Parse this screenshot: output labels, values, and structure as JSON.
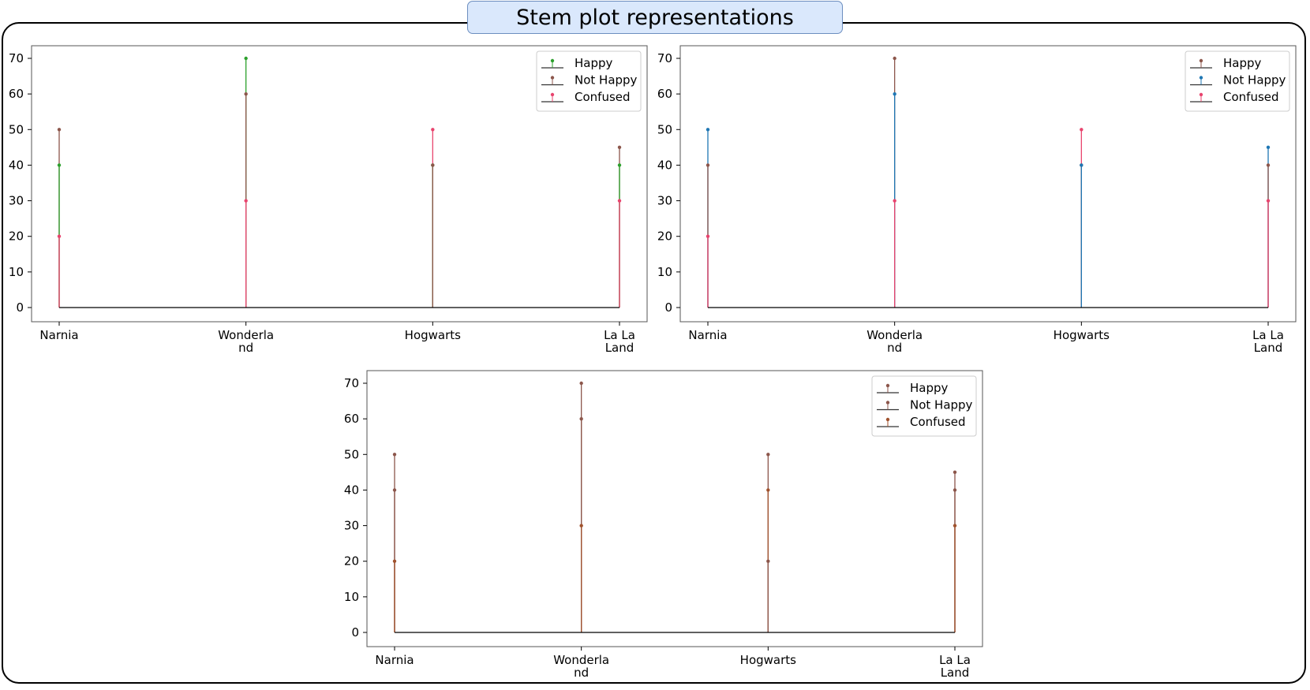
{
  "page_title": "Stem plot representations",
  "chart_data": [
    {
      "type": "stem",
      "categories": [
        "Narnia",
        "Wonderland",
        "Hogwarts",
        "La La Land"
      ],
      "category_labels": [
        [
          "Narnia"
        ],
        [
          "Wonderla",
          "nd"
        ],
        [
          "Hogwarts"
        ],
        [
          "La La",
          "Land"
        ]
      ],
      "series": [
        {
          "name": "Happy",
          "values": [
            40,
            70,
            40,
            40
          ],
          "color": "#2ca02c",
          "marker_color": "#2ca02c"
        },
        {
          "name": "Not Happy",
          "values": [
            50,
            60,
            40,
            45
          ],
          "color": "#8c564b",
          "marker_color": "#8c564b"
        },
        {
          "name": "Confused",
          "values": [
            20,
            30,
            50,
            30
          ],
          "color": "#e8446e",
          "marker_color": "#e8446e"
        }
      ],
      "ylim": [
        0,
        70
      ],
      "yticks": [
        0,
        10,
        20,
        30,
        40,
        50,
        60,
        70
      ],
      "legend_position": "top-right",
      "grid": false,
      "xlabel": "",
      "ylabel": "",
      "title": ""
    },
    {
      "type": "stem",
      "categories": [
        "Narnia",
        "Wonderland",
        "Hogwarts",
        "La La Land"
      ],
      "category_labels": [
        [
          "Narnia"
        ],
        [
          "Wonderla",
          "nd"
        ],
        [
          "Hogwarts"
        ],
        [
          "La La",
          "Land"
        ]
      ],
      "series": [
        {
          "name": "Happy",
          "values": [
            40,
            70,
            40,
            40
          ],
          "color": "#8c564b",
          "marker_color": "#8c564b"
        },
        {
          "name": "Not Happy",
          "values": [
            50,
            60,
            40,
            45
          ],
          "color": "#1f77b4",
          "marker_color": "#1f77b4"
        },
        {
          "name": "Confused",
          "values": [
            20,
            30,
            50,
            30
          ],
          "color": "#e8446e",
          "marker_color": "#e8446e"
        }
      ],
      "ylim": [
        0,
        70
      ],
      "yticks": [
        0,
        10,
        20,
        30,
        40,
        50,
        60,
        70
      ],
      "legend_position": "top-right",
      "grid": false,
      "xlabel": "",
      "ylabel": "",
      "title": ""
    },
    {
      "type": "stem",
      "categories": [
        "Narnia",
        "Wonderland",
        "Hogwarts",
        "La La Land"
      ],
      "category_labels": [
        [
          "Narnia"
        ],
        [
          "Wonderla",
          "nd"
        ],
        [
          "Hogwarts"
        ],
        [
          "La La",
          "Land"
        ]
      ],
      "series": [
        {
          "name": "Happy",
          "values": [
            40,
            70,
            20,
            40
          ],
          "color": "#8c564b",
          "marker_color": "#8c564b"
        },
        {
          "name": "Not Happy",
          "values": [
            50,
            60,
            50,
            45
          ],
          "color": "#8c564b",
          "marker_color": "#8c564b"
        },
        {
          "name": "Confused",
          "values": [
            20,
            30,
            40,
            30
          ],
          "color": "#a0522d",
          "marker_color": "#a0522d"
        }
      ],
      "ylim": [
        0,
        70
      ],
      "yticks": [
        0,
        10,
        20,
        30,
        40,
        50,
        60,
        70
      ],
      "legend_position": "top-right",
      "grid": false,
      "xlabel": "",
      "ylabel": "",
      "title": ""
    }
  ]
}
